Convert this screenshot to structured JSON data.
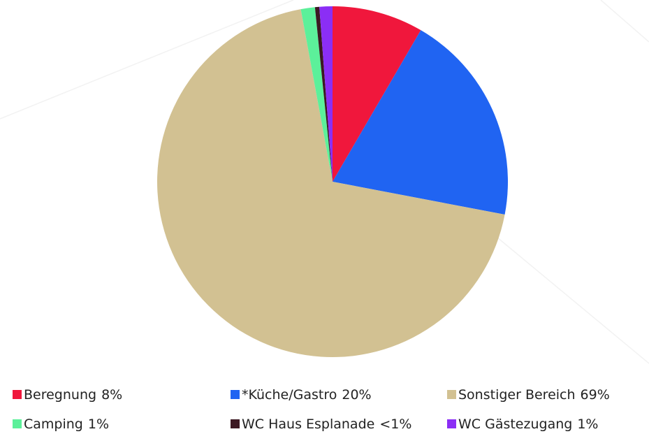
{
  "chart_data": {
    "type": "pie",
    "categories": [
      "Beregnung",
      "*Küche/Gastro",
      "Sonstiger Bereich",
      "Camping",
      "WC Haus Esplanade",
      "WC Gästezugang"
    ],
    "values": [
      8.4,
      19.6,
      69.1,
      1.3,
      0.4,
      1.2
    ],
    "value_labels": [
      "8%",
      "20%",
      "69%",
      "1%",
      "<1%",
      "1%"
    ],
    "colors": [
      "#f0173c",
      "#2064f2",
      "#d2c192",
      "#5cf09a",
      "#3c1822",
      "#8b2ef5"
    ]
  }
}
